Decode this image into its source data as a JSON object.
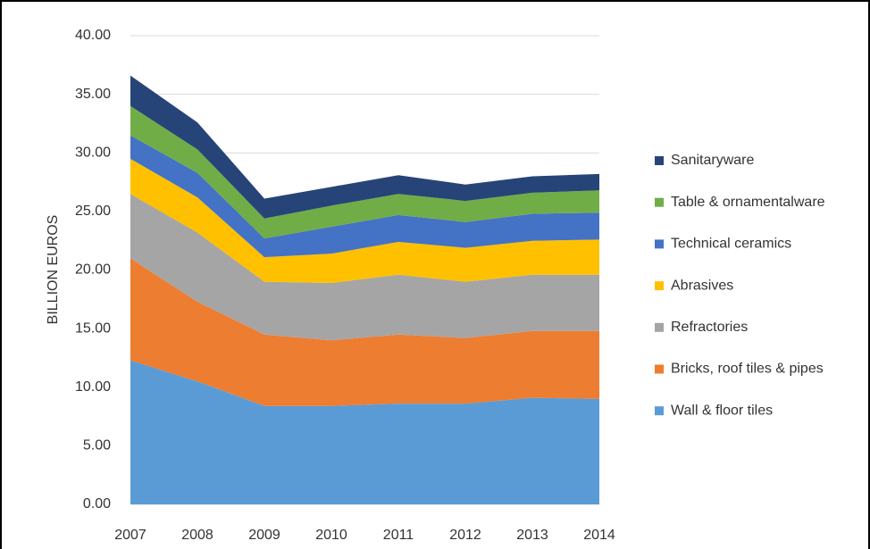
{
  "chart_data": {
    "type": "stacked_area",
    "y_label": "BILLION EUROS",
    "categories": [
      "2007",
      "2008",
      "2009",
      "2010",
      "2011",
      "2012",
      "2013",
      "2014"
    ],
    "series": [
      {
        "name": "Wall & floor tiles",
        "color": "#5b9bd5",
        "values": [
          12.3,
          10.5,
          8.4,
          8.4,
          8.6,
          8.6,
          9.1,
          9.0
        ]
      },
      {
        "name": "Bricks, roof tiles & pipes",
        "color": "#ed7d31",
        "values": [
          8.7,
          6.8,
          6.1,
          5.6,
          5.9,
          5.6,
          5.7,
          5.8
        ]
      },
      {
        "name": "Refractories",
        "color": "#a5a5a5",
        "values": [
          5.5,
          5.9,
          4.5,
          4.9,
          5.1,
          4.8,
          4.8,
          4.8
        ]
      },
      {
        "name": "Abrasives",
        "color": "#ffc000",
        "values": [
          3.0,
          3.0,
          2.1,
          2.5,
          2.8,
          2.9,
          2.9,
          3.0
        ]
      },
      {
        "name": "Technical ceramics",
        "color": "#4472c4",
        "values": [
          2.0,
          2.1,
          1.6,
          2.3,
          2.3,
          2.2,
          2.3,
          2.3
        ]
      },
      {
        "name": "Table & ornamentalware",
        "color": "#70ad47",
        "values": [
          2.5,
          2.0,
          1.7,
          1.8,
          1.8,
          1.8,
          1.8,
          1.9
        ]
      },
      {
        "name": "Sanitaryware",
        "color": "#264478",
        "values": [
          2.6,
          2.3,
          1.7,
          1.6,
          1.6,
          1.4,
          1.4,
          1.4
        ]
      }
    ],
    "ylim": [
      0,
      40
    ],
    "yticks": [
      {
        "value": 0,
        "label": "0.00"
      },
      {
        "value": 5,
        "label": "5.00"
      },
      {
        "value": 10,
        "label": "10.00"
      },
      {
        "value": 15,
        "label": "15.00"
      },
      {
        "value": 20,
        "label": "20.00"
      },
      {
        "value": 25,
        "label": "25.00"
      },
      {
        "value": 30,
        "label": "30.00"
      },
      {
        "value": 35,
        "label": "35.00"
      },
      {
        "value": 40,
        "label": "40.00"
      }
    ],
    "grid": true,
    "legend": "right"
  }
}
